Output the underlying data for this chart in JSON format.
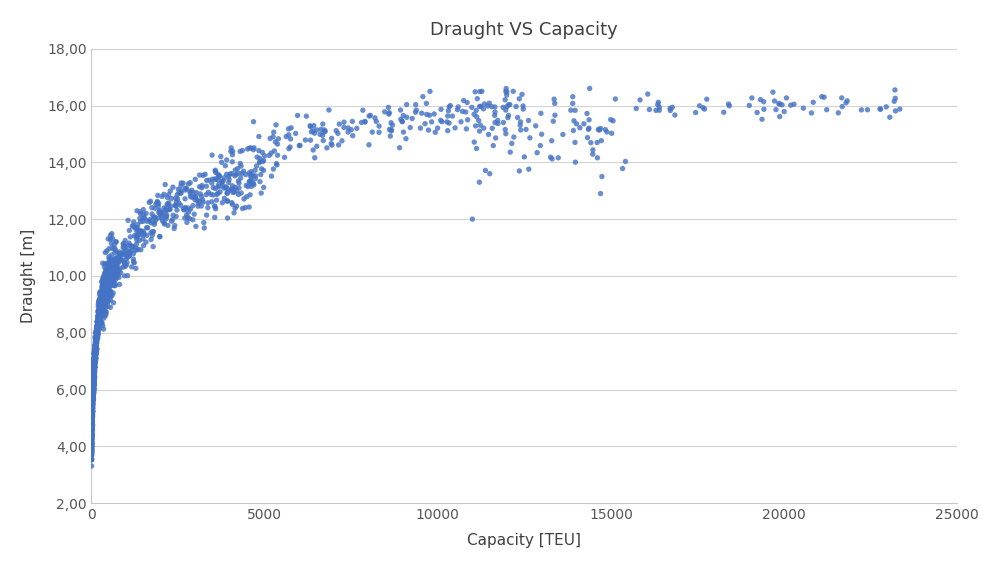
{
  "title": "Draught VS Capacity",
  "xlabel": "Capacity [TEU]",
  "ylabel": "Draught [m]",
  "dot_color": "#4472C4",
  "dot_size": 15,
  "dot_alpha": 0.8,
  "xlim": [
    0,
    25000
  ],
  "ylim": [
    2.0,
    18.0
  ],
  "xticks": [
    0,
    5000,
    10000,
    15000,
    20000,
    25000
  ],
  "yticks": [
    2.0,
    4.0,
    6.0,
    8.0,
    10.0,
    12.0,
    14.0,
    16.0,
    18.0
  ],
  "background_color": "#FFFFFF",
  "grid_color": "#D3D3D3",
  "title_fontsize": 13,
  "axis_label_fontsize": 11,
  "tick_fontsize": 10
}
